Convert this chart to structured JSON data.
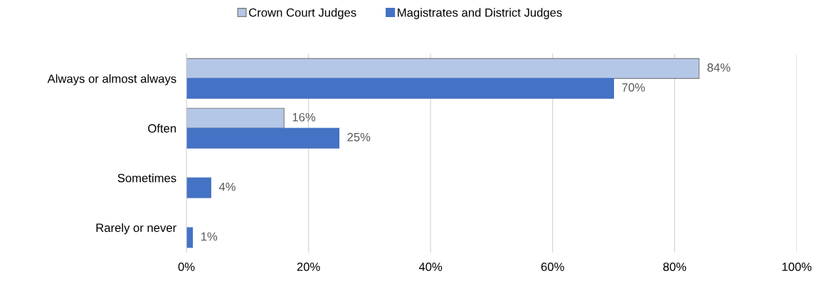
{
  "chart_data": {
    "type": "bar",
    "orientation": "horizontal",
    "categories": [
      "Always or almost always",
      "Often",
      "Sometimes",
      "Rarely or never"
    ],
    "series": [
      {
        "name": "Crown Court Judges",
        "color": "#b4c7e7",
        "values": [
          84,
          16,
          null,
          null
        ],
        "value_labels": [
          "84%",
          "16%",
          null,
          null
        ]
      },
      {
        "name": "Magistrates and District Judges",
        "color": "#4472c4",
        "values": [
          70,
          25,
          4,
          1
        ],
        "value_labels": [
          "70%",
          "25%",
          "4%",
          "1%"
        ]
      }
    ],
    "xlim": [
      0,
      100
    ],
    "xticks": [
      {
        "value": 0,
        "label": "0%"
      },
      {
        "value": 20,
        "label": "20%"
      },
      {
        "value": 40,
        "label": "40%"
      },
      {
        "value": 60,
        "label": "60%"
      },
      {
        "value": 80,
        "label": "80%"
      },
      {
        "value": 100,
        "label": "100%"
      }
    ],
    "grid": "x",
    "legend": "top"
  }
}
